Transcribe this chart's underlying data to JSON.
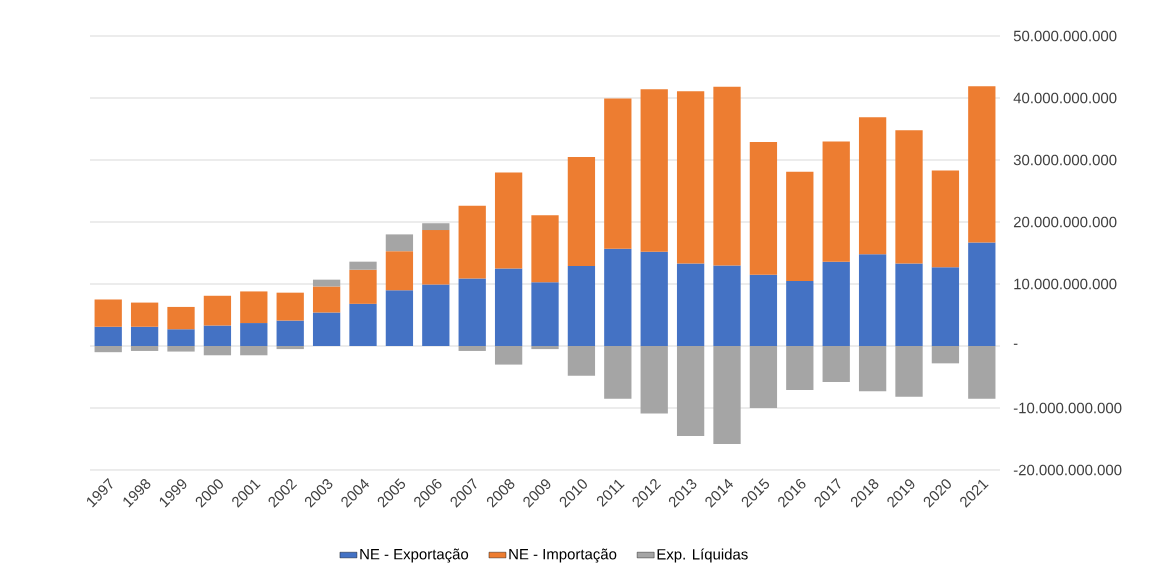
{
  "chart_data": {
    "type": "bar",
    "stacked": true,
    "categories": [
      "1997",
      "1998",
      "1999",
      "2000",
      "2001",
      "2002",
      "2003",
      "2004",
      "2005",
      "2006",
      "2007",
      "2008",
      "2009",
      "2010",
      "2011",
      "2012",
      "2013",
      "2014",
      "2015",
      "2016",
      "2017",
      "2018",
      "2019",
      "2020",
      "2021"
    ],
    "series": [
      {
        "name": "NE - Exportação",
        "color": "#4472c4",
        "values": [
          3100000000,
          3100000000,
          2700000000,
          3300000000,
          3700000000,
          4100000000,
          5400000000,
          6800000000,
          9000000000,
          9900000000,
          10900000000,
          12500000000,
          10300000000,
          12900000000,
          15700000000,
          15200000000,
          13300000000,
          13000000000,
          11500000000,
          10500000000,
          13600000000,
          14800000000,
          13300000000,
          12700000000,
          16700000000
        ]
      },
      {
        "name": "NE - Importação",
        "color": "#ed7d31",
        "values": [
          4400000000,
          3900000000,
          3600000000,
          4800000000,
          5100000000,
          4500000000,
          4200000000,
          5500000000,
          6300000000,
          8800000000,
          11700000000,
          15500000000,
          10800000000,
          17600000000,
          24200000000,
          26200000000,
          27800000000,
          28800000000,
          21400000000,
          17600000000,
          19400000000,
          22100000000,
          21500000000,
          15600000000,
          25200000000
        ]
      },
      {
        "name": "Exp. Líquidas",
        "color": "#a5a5a5",
        "values": [
          -1000000000,
          -800000000,
          -900000000,
          -1500000000,
          -1500000000,
          -500000000,
          1100000000,
          1300000000,
          2700000000,
          1100000000,
          -800000000,
          -3000000000,
          -500000000,
          -4800000000,
          -8500000000,
          -10900000000,
          -14500000000,
          -15800000000,
          -10000000000,
          -7100000000,
          -5800000000,
          -7300000000,
          -8200000000,
          -2800000000,
          -8500000000
        ]
      }
    ],
    "ylim": [
      -20000000000,
      50000000000
    ],
    "yticks": [
      {
        "value": -20000000000,
        "label": "-20.000.000.000"
      },
      {
        "value": -10000000000,
        "label": "-10.000.000.000"
      },
      {
        "value": 0,
        "label": "-"
      },
      {
        "value": 10000000000,
        "label": "10.000.000.000"
      },
      {
        "value": 20000000000,
        "label": "20.000.000.000"
      },
      {
        "value": 30000000000,
        "label": "30.000.000.000"
      },
      {
        "value": 40000000000,
        "label": "40.000.000.000"
      },
      {
        "value": 50000000000,
        "label": "50.000.000.000"
      }
    ],
    "grid": "y",
    "legend": "bottom"
  }
}
